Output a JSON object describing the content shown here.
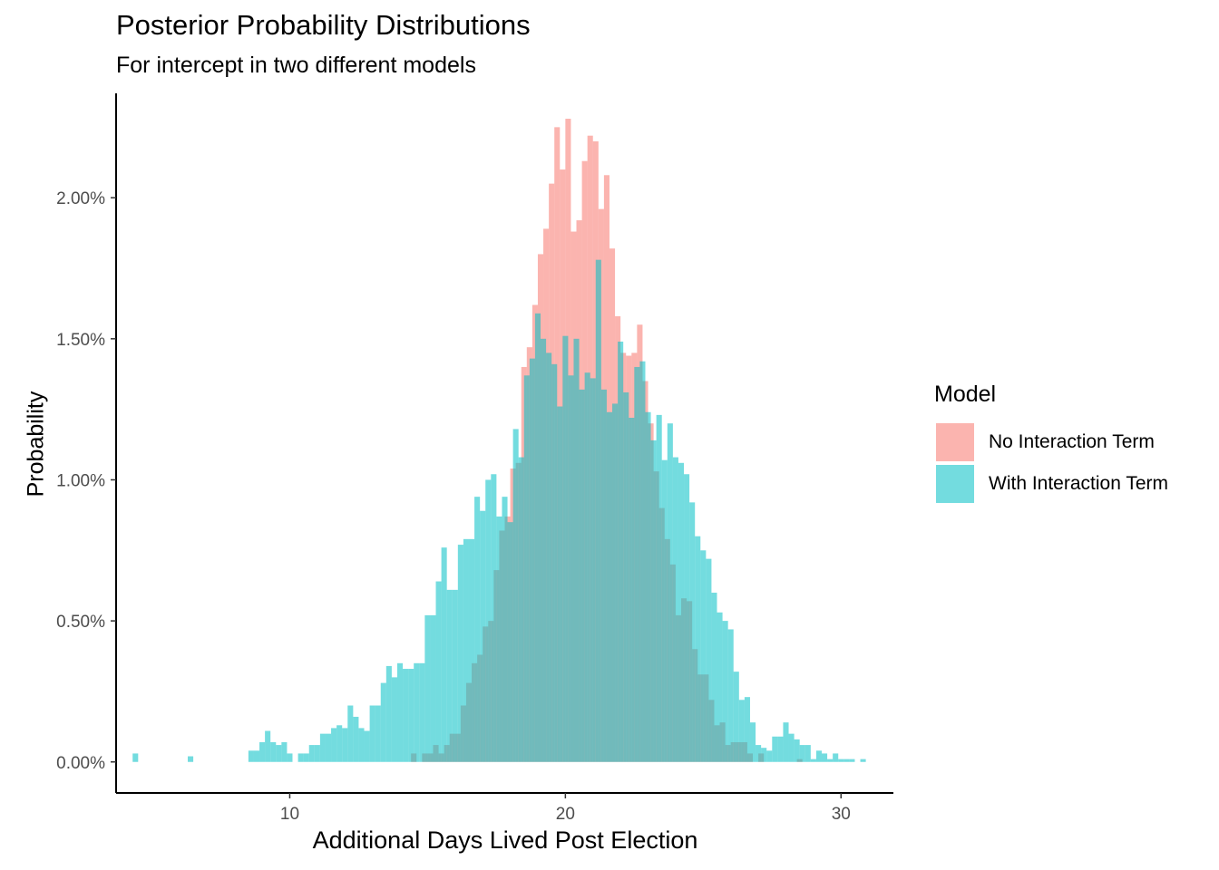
{
  "chart_data": {
    "type": "histogram",
    "title": "Posterior Probability Distributions",
    "subtitle": "For intercept in two different models",
    "xlabel": "Additional Days Lived Post Election",
    "ylabel": "Probability",
    "xlim": [
      3.7,
      31.9
    ],
    "ylim": [
      -0.0011,
      0.0237
    ],
    "x_ticks": [
      10,
      20,
      30
    ],
    "x_tick_labels": [
      "10",
      "20",
      "30"
    ],
    "y_ticks": [
      0,
      0.005,
      0.01,
      0.015,
      0.02
    ],
    "y_tick_labels": [
      "0.00%",
      "0.50%",
      "1.00%",
      "1.50%",
      "2.00%"
    ],
    "grid": false,
    "legend": {
      "title": "Model",
      "position": "right"
    },
    "bin_width": 0.2,
    "series": [
      {
        "name": "No Interaction Term",
        "color": "#F8766D",
        "bin_start": 14.4,
        "values": [
          0.0003,
          0.0,
          0.0003,
          0.0003,
          0.0006,
          0.0003,
          0.0006,
          0.001,
          0.001,
          0.002,
          0.0028,
          0.0035,
          0.0038,
          0.0048,
          0.005,
          0.0068,
          0.0082,
          0.0087,
          0.0104,
          0.0106,
          0.014,
          0.0147,
          0.0162,
          0.018,
          0.0189,
          0.0205,
          0.0225,
          0.021,
          0.0228,
          0.0188,
          0.0192,
          0.0213,
          0.0222,
          0.022,
          0.0196,
          0.0208,
          0.0182,
          0.0158,
          0.0145,
          0.0144,
          0.0145,
          0.0155,
          0.0135,
          0.012,
          0.0103,
          0.009,
          0.0079,
          0.007,
          0.0052,
          0.0058,
          0.0057,
          0.004,
          0.0031,
          0.0031,
          0.0022,
          0.0013,
          0.0014,
          0.0006,
          0.0007,
          0.0007,
          0.0007,
          0.0003,
          0.0,
          0.0003,
          0.0,
          0.0,
          0.0,
          0.0,
          0.0,
          0.0,
          0.0001
        ]
      },
      {
        "name": "With Interaction Term",
        "color": "#00BFC4",
        "bin_start": 4.3,
        "values": [
          0.0003,
          0.0,
          0.0,
          0.0,
          0.0,
          0.0,
          0.0,
          0.0,
          0.0,
          0.0,
          0.0002,
          0.0,
          0.0,
          0.0,
          0.0,
          0.0,
          0.0,
          0.0,
          0.0,
          0.0,
          0.0,
          0.0004,
          0.0004,
          0.0007,
          0.0011,
          0.0007,
          0.0006,
          0.0007,
          0.0003,
          0.0,
          0.0003,
          0.0003,
          0.0006,
          0.0006,
          0.001,
          0.001,
          0.0012,
          0.0013,
          0.0012,
          0.002,
          0.0016,
          0.0012,
          0.0011,
          0.002,
          0.002,
          0.0028,
          0.0034,
          0.003,
          0.0035,
          0.0033,
          0.0033,
          0.0035,
          0.0035,
          0.0052,
          0.0052,
          0.0064,
          0.0076,
          0.0061,
          0.0061,
          0.0077,
          0.0079,
          0.0079,
          0.0094,
          0.0089,
          0.01,
          0.0102,
          0.0087,
          0.0094,
          0.0085,
          0.0118,
          0.0108,
          0.0137,
          0.0143,
          0.0159,
          0.015,
          0.0145,
          0.0141,
          0.0126,
          0.0151,
          0.0137,
          0.015,
          0.0132,
          0.0138,
          0.0136,
          0.0178,
          0.0132,
          0.0124,
          0.0127,
          0.0149,
          0.0131,
          0.0122,
          0.014,
          0.0142,
          0.0124,
          0.0114,
          0.0123,
          0.0107,
          0.012,
          0.0108,
          0.0106,
          0.0102,
          0.0092,
          0.008,
          0.0075,
          0.0072,
          0.006,
          0.0053,
          0.005,
          0.0047,
          0.0032,
          0.0022,
          0.0023,
          0.0014,
          0.0006,
          0.0005,
          0.0004,
          0.0009,
          0.0009,
          0.0014,
          0.001,
          0.0008,
          0.0006,
          0.0006,
          0.0001,
          0.0004,
          0.0003,
          0.0001,
          0.0003,
          0.0001,
          0.0001,
          0.0001,
          0.0,
          0.0001
        ]
      }
    ]
  }
}
